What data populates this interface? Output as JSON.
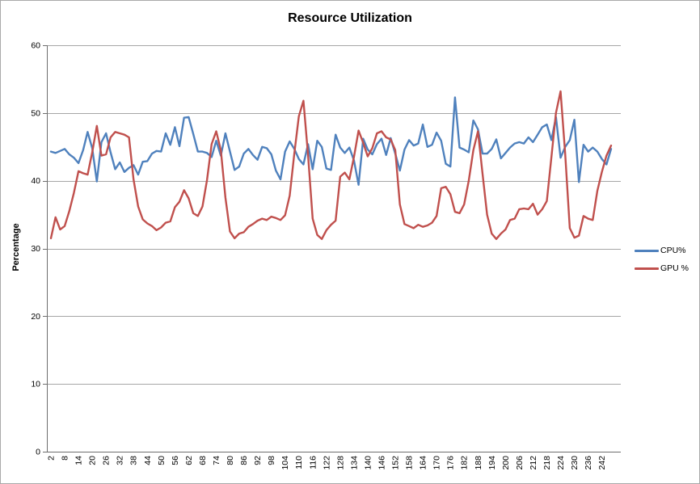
{
  "chart_data": {
    "type": "line",
    "title": "Resource Utilization",
    "xlabel": "",
    "ylabel": "Percentage",
    "ylim": [
      0,
      60
    ],
    "y_ticks": [
      0,
      10,
      20,
      30,
      40,
      50,
      60
    ],
    "grid": true,
    "legend_position": "right",
    "x": {
      "start": 2,
      "step": 2,
      "count": 123
    },
    "x_tick_labels": [
      "2",
      "8",
      "14",
      "20",
      "26",
      "32",
      "38",
      "44",
      "50",
      "56",
      "62",
      "68",
      "74",
      "80",
      "86",
      "92",
      "98",
      "104",
      "110",
      "116",
      "122",
      "128",
      "134",
      "140",
      "146",
      "152",
      "158",
      "164",
      "170",
      "176",
      "182",
      "188",
      "194",
      "200",
      "206",
      "212",
      "218",
      "224",
      "230",
      "236",
      "242"
    ],
    "series": [
      {
        "name": "CPU%",
        "color": "#4F81BD",
        "values": [
          44.3,
          44.1,
          44.4,
          44.7,
          43.9,
          43.4,
          42.6,
          44.5,
          47.2,
          44.8,
          39.9,
          45.7,
          47.0,
          44.2,
          41.7,
          42.7,
          41.3,
          41.9,
          42.3,
          40.9,
          42.8,
          42.9,
          44.0,
          44.4,
          44.3,
          47.0,
          45.3,
          47.9,
          45.1,
          49.3,
          49.4,
          46.9,
          44.3,
          44.3,
          44.1,
          43.5,
          45.9,
          43.7,
          47.0,
          44.3,
          41.6,
          42.1,
          44.0,
          44.7,
          43.8,
          43.1,
          45.0,
          44.8,
          43.9,
          41.5,
          40.2,
          44.3,
          45.8,
          44.7,
          43.2,
          42.4,
          45.4,
          41.7,
          45.9,
          45.0,
          41.8,
          41.6,
          46.8,
          44.9,
          44.1,
          44.9,
          43.0,
          39.4,
          46.2,
          44.6,
          43.9,
          45.4,
          46.2,
          43.8,
          46.3,
          44.0,
          41.5,
          44.6,
          46.0,
          45.2,
          45.5,
          48.3,
          45.0,
          45.3,
          47.1,
          45.9,
          42.5,
          42.1,
          52.3,
          44.9,
          44.6,
          44.2,
          48.9,
          47.6,
          44.0,
          44.0,
          44.7,
          46.1,
          43.3,
          44.1,
          44.9,
          45.5,
          45.7,
          45.5,
          46.4,
          45.7,
          46.8,
          47.9,
          48.3,
          46.0,
          49.4,
          43.4,
          45.0,
          46.0,
          49.0,
          39.8,
          45.3,
          44.3,
          44.9,
          44.3,
          43.2,
          42.4,
          44.7
        ]
      },
      {
        "name": "GPU %",
        "color": "#C0504D",
        "values": [
          31.5,
          34.6,
          32.8,
          33.3,
          35.5,
          38.2,
          41.4,
          41.1,
          40.9,
          44.2,
          48.1,
          43.7,
          43.9,
          46.4,
          47.2,
          47.0,
          46.8,
          46.4,
          40.2,
          36.2,
          34.3,
          33.7,
          33.3,
          32.7,
          33.1,
          33.8,
          34.0,
          36.1,
          36.9,
          38.6,
          37.4,
          35.2,
          34.8,
          36.2,
          40.1,
          45.4,
          47.3,
          44.5,
          37.5,
          32.5,
          31.5,
          32.2,
          32.4,
          33.2,
          33.6,
          34.1,
          34.4,
          34.2,
          34.7,
          34.5,
          34.2,
          34.9,
          37.8,
          44.0,
          49.5,
          51.8,
          43.8,
          34.4,
          32.0,
          31.4,
          32.7,
          33.5,
          34.1,
          40.6,
          41.2,
          40.2,
          43.5,
          47.4,
          45.6,
          43.6,
          44.8,
          47.0,
          47.3,
          46.4,
          46.1,
          44.5,
          36.5,
          33.6,
          33.3,
          33.0,
          33.5,
          33.2,
          33.4,
          33.8,
          34.8,
          38.9,
          39.1,
          38.0,
          35.4,
          35.2,
          36.5,
          40.0,
          44.5,
          47.3,
          41.0,
          35.0,
          32.2,
          31.4,
          32.2,
          32.8,
          34.2,
          34.4,
          35.8,
          35.9,
          35.8,
          36.6,
          35.0,
          35.8,
          37.0,
          43.5,
          50.0,
          53.2,
          44.0,
          33.0,
          31.6,
          31.9,
          34.8,
          34.4,
          34.2,
          38.5,
          41.3,
          43.7,
          45.2
        ]
      }
    ]
  }
}
